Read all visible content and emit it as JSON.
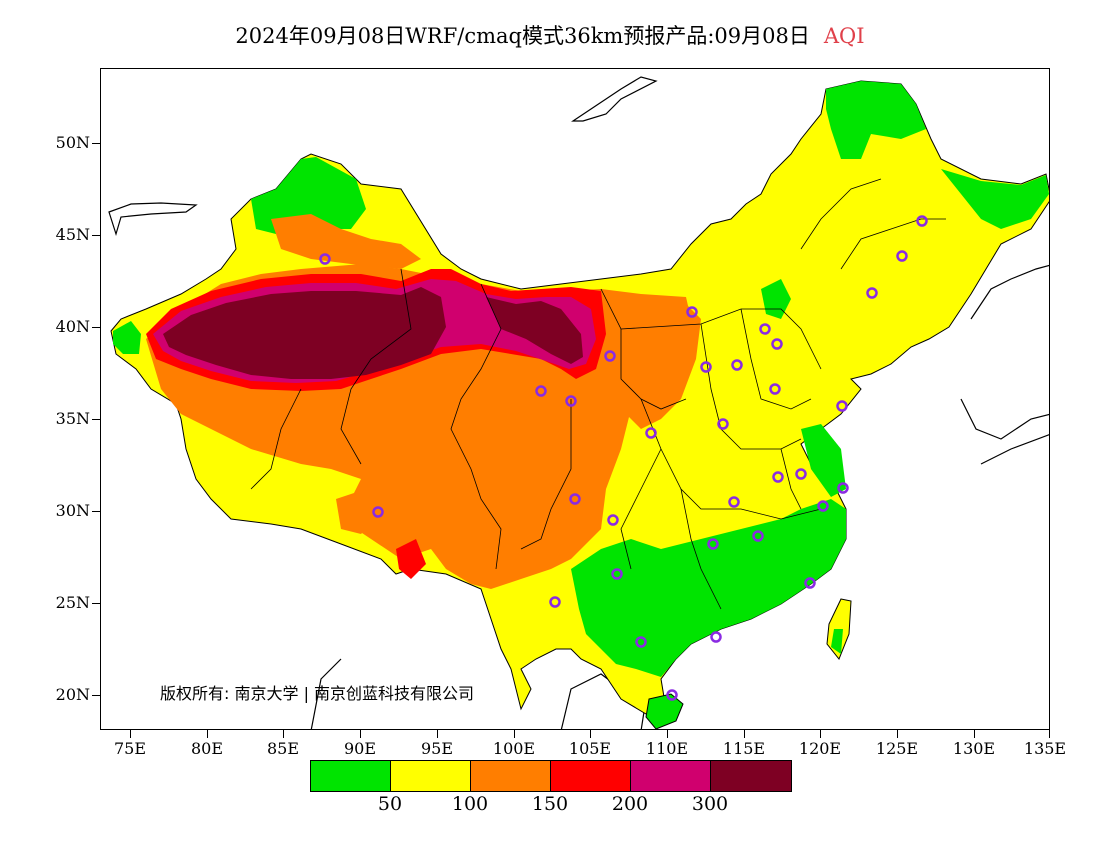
{
  "title": {
    "main": "2024年09月08日WRF/cmaq模式36km预报产品:09月08日",
    "variable": "AQI",
    "variable_color": "#e0404a"
  },
  "axes": {
    "yticks": [
      "50N",
      "45N",
      "40N",
      "35N",
      "30N",
      "25N",
      "20N"
    ],
    "xticks": [
      "75E",
      "80E",
      "85E",
      "90E",
      "95E",
      "100E",
      "105E",
      "110E",
      "115E",
      "120E",
      "125E",
      "130E",
      "135E"
    ]
  },
  "copyright": "版权所有: 南京大学 | 南京创蓝科技有限公司",
  "legend": {
    "colors": [
      "#00e400",
      "#ffff00",
      "#ff7e00",
      "#ff0000",
      "#d0006e",
      "#7e0023"
    ],
    "labels": [
      "50",
      "100",
      "150",
      "200",
      "300"
    ]
  },
  "map": {
    "land_base_color": "#ffff00",
    "cities_marker_color": "#8a2be2",
    "boundary_color": "#000000"
  }
}
